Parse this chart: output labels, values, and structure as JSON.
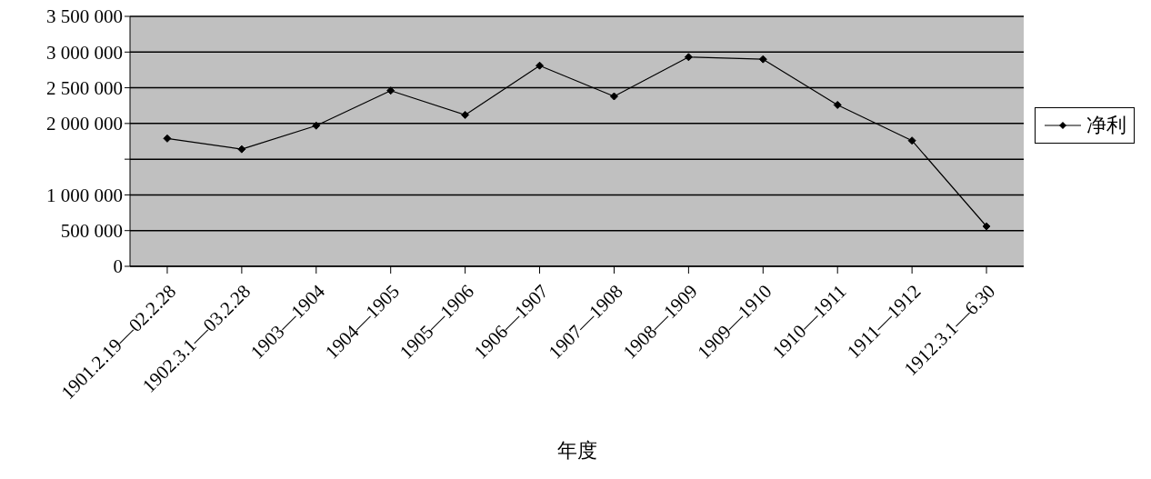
{
  "chart_data": {
    "type": "line",
    "xlabel": "年度",
    "categories": [
      "1901.2.19—02.2.28",
      "1902.3.1—03.2.28",
      "1903—1904",
      "1904—1905",
      "1905—1906",
      "1906—1907",
      "1907—1908",
      "1908—1909",
      "1909—1910",
      "1910—1911",
      "1911—1912",
      "1912.3.1—6.30"
    ],
    "series": [
      {
        "name": "净利",
        "color": "#000000",
        "values": [
          1790000,
          1640000,
          1970000,
          2460000,
          2120000,
          2810000,
          2380000,
          2930000,
          2900000,
          2260000,
          1760000,
          560000
        ]
      }
    ],
    "ylim": [
      0,
      3500000
    ],
    "yticks": [
      {
        "value": 0,
        "label": "0"
      },
      {
        "value": 500000,
        "label": "500 000"
      },
      {
        "value": 1000000,
        "label": "1 000 000"
      },
      {
        "value": 1500000,
        "label": null
      },
      {
        "value": 2000000,
        "label": "2 000 000"
      },
      {
        "value": 2500000,
        "label": "2 500 000"
      },
      {
        "value": 3000000,
        "label": "3 000 000"
      },
      {
        "value": 3500000,
        "label": "3 500 000"
      }
    ],
    "grid": "y",
    "legend": "right",
    "marker": "diamond",
    "line_style": "solid"
  }
}
